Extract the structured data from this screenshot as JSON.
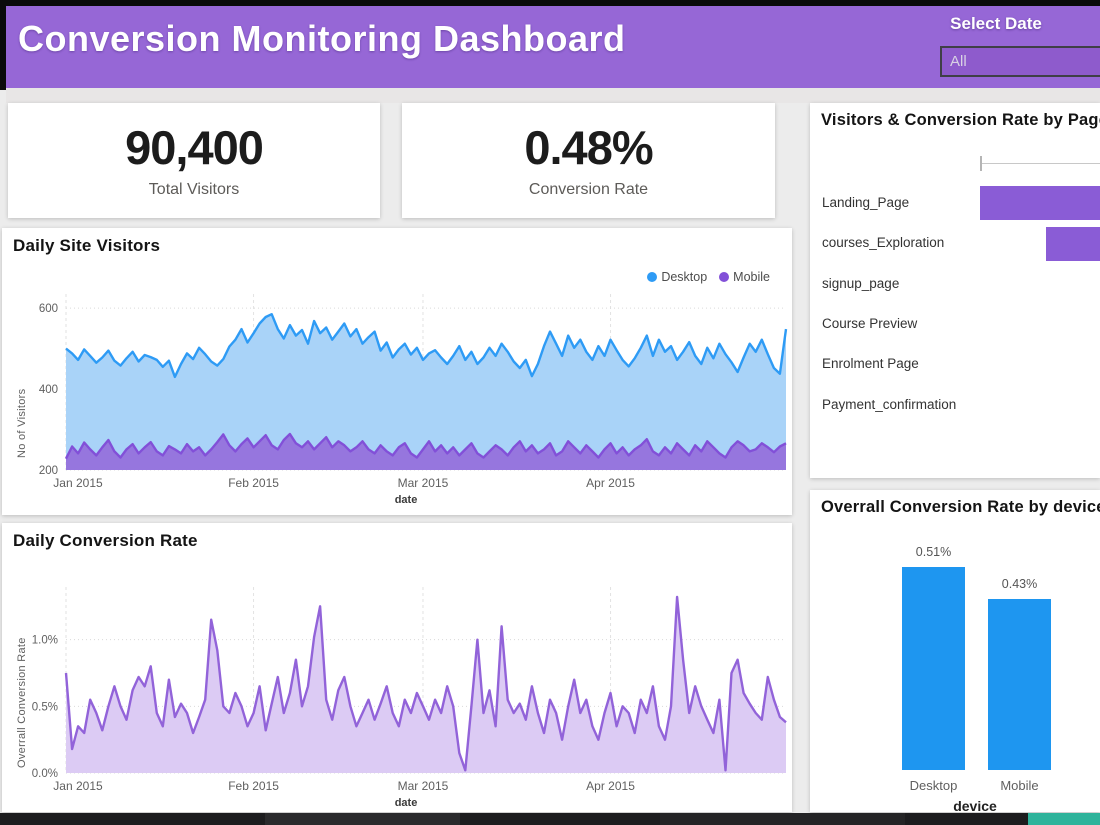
{
  "header": {
    "title": "Conversion Monitoring Dashboard",
    "date_filter_label": "Select Date",
    "date_filter_value": "All"
  },
  "kpis": [
    {
      "value": "90,400",
      "label": "Total Visitors"
    },
    {
      "value": "0.48%",
      "label": "Conversion Rate"
    }
  ],
  "colors": {
    "header_purple": "#9667D6",
    "desktop_line": "#2E9BF5",
    "desktop_fill": "#A9D3F8",
    "mobile_line": "#8250D8",
    "mobile_fill": "#9571DC",
    "conversion_line": "#9263D9",
    "conversion_fill": "#DCCBF4",
    "bar_purple": "#8A5CD6",
    "bar_blue": "#1E96F0",
    "taskbar_teal": "#2EB39B"
  },
  "chart_data": [
    {
      "id": "daily_site_visitors",
      "type": "area",
      "title": "Daily Site Visitors",
      "xlabel": "date",
      "ylabel": "No of Visitors",
      "ylim": [
        200,
        620
      ],
      "grid": true,
      "legend_position": "top-right",
      "x_ticks": [
        {
          "index": 0,
          "label": "Jan 2015"
        },
        {
          "index": 31,
          "label": "Feb 2015"
        },
        {
          "index": 59,
          "label": "Mar 2015"
        },
        {
          "index": 90,
          "label": "Apr 2015"
        }
      ],
      "y_ticks": [
        {
          "value": 600,
          "label": "600"
        },
        {
          "value": 400,
          "label": "400"
        },
        {
          "value": 200,
          "label": "200"
        }
      ],
      "series": [
        {
          "name": "Desktop",
          "color": "#2E9BF5",
          "fill": "#A9D3F8",
          "fill_opacity": 1,
          "values": [
            500,
            488,
            472,
            498,
            482,
            465,
            478,
            495,
            470,
            458,
            476,
            492,
            468,
            484,
            479,
            472,
            455,
            470,
            430,
            462,
            488,
            474,
            502,
            486,
            468,
            458,
            474,
            505,
            522,
            548,
            515,
            538,
            562,
            578,
            585,
            548,
            525,
            558,
            532,
            546,
            512,
            568,
            538,
            552,
            522,
            542,
            562,
            530,
            548,
            512,
            528,
            542,
            495,
            515,
            478,
            498,
            512,
            485,
            502,
            472,
            488,
            496,
            478,
            462,
            482,
            506,
            472,
            492,
            462,
            478,
            502,
            482,
            512,
            492,
            468,
            452,
            472,
            432,
            462,
            506,
            542,
            512,
            482,
            532,
            502,
            522,
            492,
            472,
            506,
            482,
            522,
            496,
            472,
            456,
            476,
            502,
            532,
            482,
            522,
            492,
            506,
            472,
            492,
            516,
            482,
            462,
            502,
            476,
            512,
            486,
            466,
            442,
            478,
            512,
            492,
            522,
            486,
            452,
            438,
            548
          ]
        },
        {
          "name": "Mobile",
          "color": "#8250D8",
          "fill": "#9571DC",
          "fill_opacity": 0.95,
          "values": [
            228,
            258,
            241,
            268,
            251,
            236,
            256,
            274,
            246,
            231,
            251,
            264,
            241,
            256,
            269,
            246,
            236,
            259,
            251,
            241,
            264,
            246,
            256,
            236,
            251,
            269,
            288,
            261,
            246,
            264,
            278,
            256,
            271,
            286,
            261,
            251,
            274,
            289,
            266,
            256,
            271,
            251,
            266,
            281,
            256,
            271,
            261,
            246,
            256,
            271,
            251,
            241,
            261,
            246,
            236,
            256,
            266,
            241,
            231,
            251,
            271,
            246,
            261,
            241,
            256,
            236,
            251,
            266,
            241,
            231,
            246,
            261,
            251,
            236,
            256,
            271,
            246,
            261,
            241,
            251,
            266,
            236,
            246,
            271,
            256,
            241,
            261,
            246,
            231,
            251,
            266,
            241,
            256,
            236,
            251,
            261,
            276,
            246,
            236,
            256,
            241,
            266,
            251,
            236,
            261,
            246,
            271,
            256,
            241,
            231,
            256,
            271,
            261,
            246,
            251,
            266,
            256,
            244,
            258,
            266
          ]
        }
      ]
    },
    {
      "id": "daily_conversion_rate",
      "type": "area",
      "title": "Daily Conversion Rate",
      "xlabel": "date",
      "ylabel": "Overrall Conversion Rate",
      "ylim": [
        0,
        1.35
      ],
      "grid": true,
      "x_ticks": [
        {
          "index": 0,
          "label": "Jan 2015"
        },
        {
          "index": 31,
          "label": "Feb 2015"
        },
        {
          "index": 59,
          "label": "Mar 2015"
        },
        {
          "index": 90,
          "label": "Apr 2015"
        }
      ],
      "y_ticks": [
        {
          "value": 1.0,
          "label": "1.0%"
        },
        {
          "value": 0.5,
          "label": "0.5%"
        },
        {
          "value": 0.0,
          "label": "0.0%"
        }
      ],
      "series": [
        {
          "name": "Overrall Conversion Rate",
          "color": "#9263D9",
          "fill": "#DCCBF4",
          "fill_opacity": 1,
          "values": [
            0.75,
            0.18,
            0.35,
            0.3,
            0.55,
            0.45,
            0.32,
            0.5,
            0.65,
            0.5,
            0.4,
            0.62,
            0.72,
            0.65,
            0.8,
            0.45,
            0.35,
            0.7,
            0.42,
            0.52,
            0.45,
            0.3,
            0.42,
            0.55,
            1.15,
            0.92,
            0.5,
            0.45,
            0.6,
            0.5,
            0.35,
            0.45,
            0.65,
            0.32,
            0.52,
            0.72,
            0.45,
            0.6,
            0.85,
            0.5,
            0.65,
            1.02,
            1.25,
            0.55,
            0.4,
            0.62,
            0.72,
            0.5,
            0.35,
            0.45,
            0.55,
            0.4,
            0.52,
            0.65,
            0.45,
            0.35,
            0.55,
            0.45,
            0.6,
            0.5,
            0.4,
            0.55,
            0.45,
            0.65,
            0.5,
            0.15,
            0.02,
            0.5,
            1.0,
            0.45,
            0.62,
            0.35,
            1.1,
            0.55,
            0.45,
            0.52,
            0.4,
            0.65,
            0.45,
            0.3,
            0.55,
            0.45,
            0.25,
            0.5,
            0.7,
            0.45,
            0.55,
            0.35,
            0.25,
            0.45,
            0.6,
            0.35,
            0.5,
            0.45,
            0.3,
            0.55,
            0.45,
            0.65,
            0.35,
            0.25,
            0.5,
            1.32,
            0.85,
            0.45,
            0.65,
            0.5,
            0.4,
            0.3,
            0.55,
            0.02,
            0.75,
            0.85,
            0.6,
            0.52,
            0.45,
            0.4,
            0.72,
            0.55,
            0.42,
            0.38
          ]
        }
      ]
    },
    {
      "id": "visitors_by_page",
      "type": "bar-horizontal",
      "title": "Visitors & Conversion Rate by Page",
      "bar_color": "#8A5CD6",
      "categories": [
        "Landing_Page",
        "courses_Exploration",
        "signup_page",
        "Course Preview",
        "Enrolment Page",
        "Payment_confirmation"
      ],
      "bars_visible": [
        {
          "category": "Landing_Page",
          "row": 0,
          "start_frac": 0.0
        },
        {
          "category": "courses_Exploration",
          "row": 1,
          "start_frac": 0.55
        }
      ]
    },
    {
      "id": "conversion_by_device",
      "type": "bar",
      "title": "Overrall Conversion Rate by device",
      "xlabel": "device",
      "categories": [
        "Desktop",
        "Mobile"
      ],
      "values": [
        0.51,
        0.43
      ],
      "value_labels": [
        "0.51%",
        "0.43%"
      ],
      "bar_color": "#1E96F0",
      "ylim": [
        0,
        0.55
      ]
    }
  ]
}
